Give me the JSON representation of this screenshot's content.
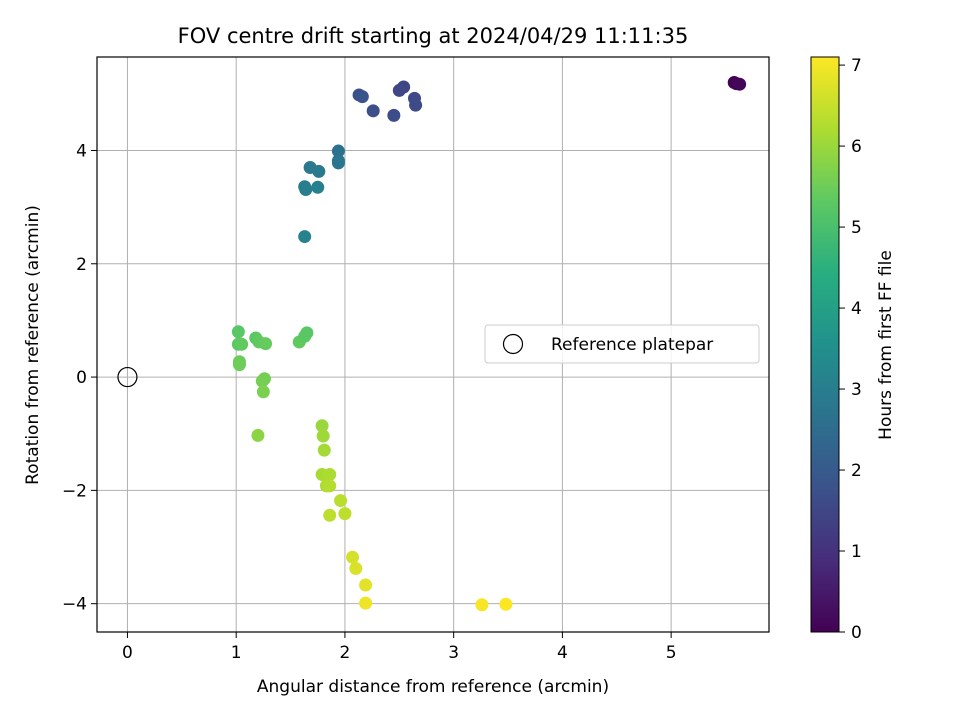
{
  "chart_data": {
    "type": "scatter",
    "title": "FOV centre drift starting at 2024/04/29 11:11:35",
    "xlabel": "Angular distance from reference (arcmin)",
    "ylabel": "Rotation from reference (arcmin)",
    "xlim": [
      -0.28,
      5.9
    ],
    "ylim": [
      -4.5,
      5.65
    ],
    "xticks": [
      0,
      1,
      2,
      3,
      4,
      5
    ],
    "yticks": [
      -4,
      -2,
      0,
      2,
      4
    ],
    "grid": true,
    "legend": {
      "placement": "right",
      "entries": [
        "Reference platepar"
      ]
    },
    "reference_point": {
      "x": 0,
      "y": 0,
      "label": "Reference platepar"
    },
    "colorbar": {
      "label": "Hours from first FF file",
      "range": [
        0,
        7.1
      ],
      "ticks": [
        0,
        1,
        2,
        3,
        4,
        5,
        6,
        7
      ],
      "colormap": "viridis"
    },
    "points": [
      {
        "x": 5.58,
        "y": 5.2,
        "t": 0.0
      },
      {
        "x": 5.6,
        "y": 5.18,
        "t": 0.05
      },
      {
        "x": 5.63,
        "y": 5.17,
        "t": 0.1
      },
      {
        "x": 2.54,
        "y": 5.12,
        "t": 1.45
      },
      {
        "x": 2.5,
        "y": 5.06,
        "t": 1.5
      },
      {
        "x": 2.64,
        "y": 4.92,
        "t": 1.55
      },
      {
        "x": 2.65,
        "y": 4.8,
        "t": 1.6
      },
      {
        "x": 2.45,
        "y": 4.62,
        "t": 1.65
      },
      {
        "x": 2.26,
        "y": 4.7,
        "t": 1.7
      },
      {
        "x": 2.13,
        "y": 4.98,
        "t": 1.75
      },
      {
        "x": 2.16,
        "y": 4.95,
        "t": 1.8
      },
      {
        "x": 1.94,
        "y": 3.99,
        "t": 2.65
      },
      {
        "x": 1.94,
        "y": 3.82,
        "t": 2.7
      },
      {
        "x": 1.94,
        "y": 3.78,
        "t": 2.75
      },
      {
        "x": 1.68,
        "y": 3.7,
        "t": 2.85
      },
      {
        "x": 1.76,
        "y": 3.63,
        "t": 2.9
      },
      {
        "x": 1.63,
        "y": 3.36,
        "t": 2.95
      },
      {
        "x": 1.64,
        "y": 3.31,
        "t": 3.0
      },
      {
        "x": 1.75,
        "y": 3.35,
        "t": 3.05
      },
      {
        "x": 1.63,
        "y": 2.48,
        "t": 3.15
      },
      {
        "x": 1.02,
        "y": 0.8,
        "t": 5.25
      },
      {
        "x": 1.02,
        "y": 0.58,
        "t": 5.3
      },
      {
        "x": 1.05,
        "y": 0.58,
        "t": 5.35
      },
      {
        "x": 1.18,
        "y": 0.69,
        "t": 5.3
      },
      {
        "x": 1.21,
        "y": 0.62,
        "t": 5.35
      },
      {
        "x": 1.27,
        "y": 0.59,
        "t": 5.4
      },
      {
        "x": 1.58,
        "y": 0.62,
        "t": 5.35
      },
      {
        "x": 1.63,
        "y": 0.72,
        "t": 5.3
      },
      {
        "x": 1.65,
        "y": 0.78,
        "t": 5.25
      },
      {
        "x": 1.03,
        "y": 0.27,
        "t": 5.45
      },
      {
        "x": 1.03,
        "y": 0.22,
        "t": 5.5
      },
      {
        "x": 1.26,
        "y": -0.03,
        "t": 5.55
      },
      {
        "x": 1.24,
        "y": -0.07,
        "t": 5.6
      },
      {
        "x": 1.25,
        "y": -0.26,
        "t": 5.65
      },
      {
        "x": 1.2,
        "y": -1.03,
        "t": 5.85
      },
      {
        "x": 1.79,
        "y": -0.86,
        "t": 6.0
      },
      {
        "x": 1.8,
        "y": -1.04,
        "t": 6.05
      },
      {
        "x": 1.81,
        "y": -1.29,
        "t": 6.1
      },
      {
        "x": 1.79,
        "y": -1.72,
        "t": 6.15
      },
      {
        "x": 1.86,
        "y": -1.72,
        "t": 6.2
      },
      {
        "x": 1.83,
        "y": -1.92,
        "t": 6.25
      },
      {
        "x": 1.86,
        "y": -1.92,
        "t": 6.3
      },
      {
        "x": 1.96,
        "y": -2.18,
        "t": 6.35
      },
      {
        "x": 2.0,
        "y": -2.41,
        "t": 6.4
      },
      {
        "x": 1.86,
        "y": -2.44,
        "t": 6.4
      },
      {
        "x": 2.07,
        "y": -3.18,
        "t": 6.65
      },
      {
        "x": 2.1,
        "y": -3.38,
        "t": 6.7
      },
      {
        "x": 2.19,
        "y": -3.67,
        "t": 6.8
      },
      {
        "x": 2.19,
        "y": -3.99,
        "t": 6.95
      },
      {
        "x": 3.26,
        "y": -4.02,
        "t": 7.05
      },
      {
        "x": 3.48,
        "y": -4.01,
        "t": 7.1
      }
    ]
  }
}
